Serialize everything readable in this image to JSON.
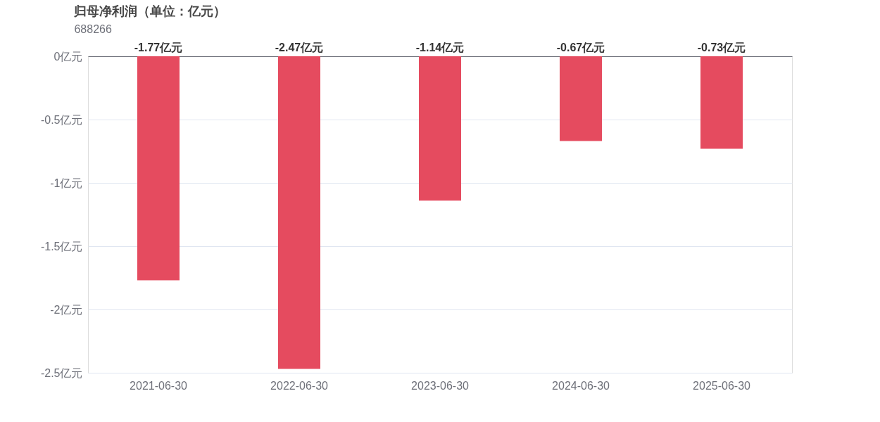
{
  "chart_data": {
    "type": "bar",
    "title": "归母净利润（单位：亿元）",
    "subtitle": "688266",
    "categories": [
      "2021-06-30",
      "2022-06-30",
      "2023-06-30",
      "2024-06-30",
      "2025-06-30"
    ],
    "values": [
      -1.77,
      -2.47,
      -1.14,
      -0.67,
      -0.73
    ],
    "value_labels": [
      "-1.77亿元",
      "-2.47亿元",
      "-1.14亿元",
      "-0.67亿元",
      "-0.73亿元"
    ],
    "color": "#e54b5f",
    "ylim": [
      -2.5,
      0
    ],
    "yticks": [
      {
        "value": 0,
        "label": "0亿元"
      },
      {
        "value": -0.5,
        "label": "-0.5亿元"
      },
      {
        "value": -1,
        "label": "-1亿元"
      },
      {
        "value": -1.5,
        "label": "-1.5亿元"
      },
      {
        "value": -2,
        "label": "-2亿元"
      },
      {
        "value": -2.5,
        "label": "-2.5亿元"
      }
    ],
    "grid": "y"
  }
}
